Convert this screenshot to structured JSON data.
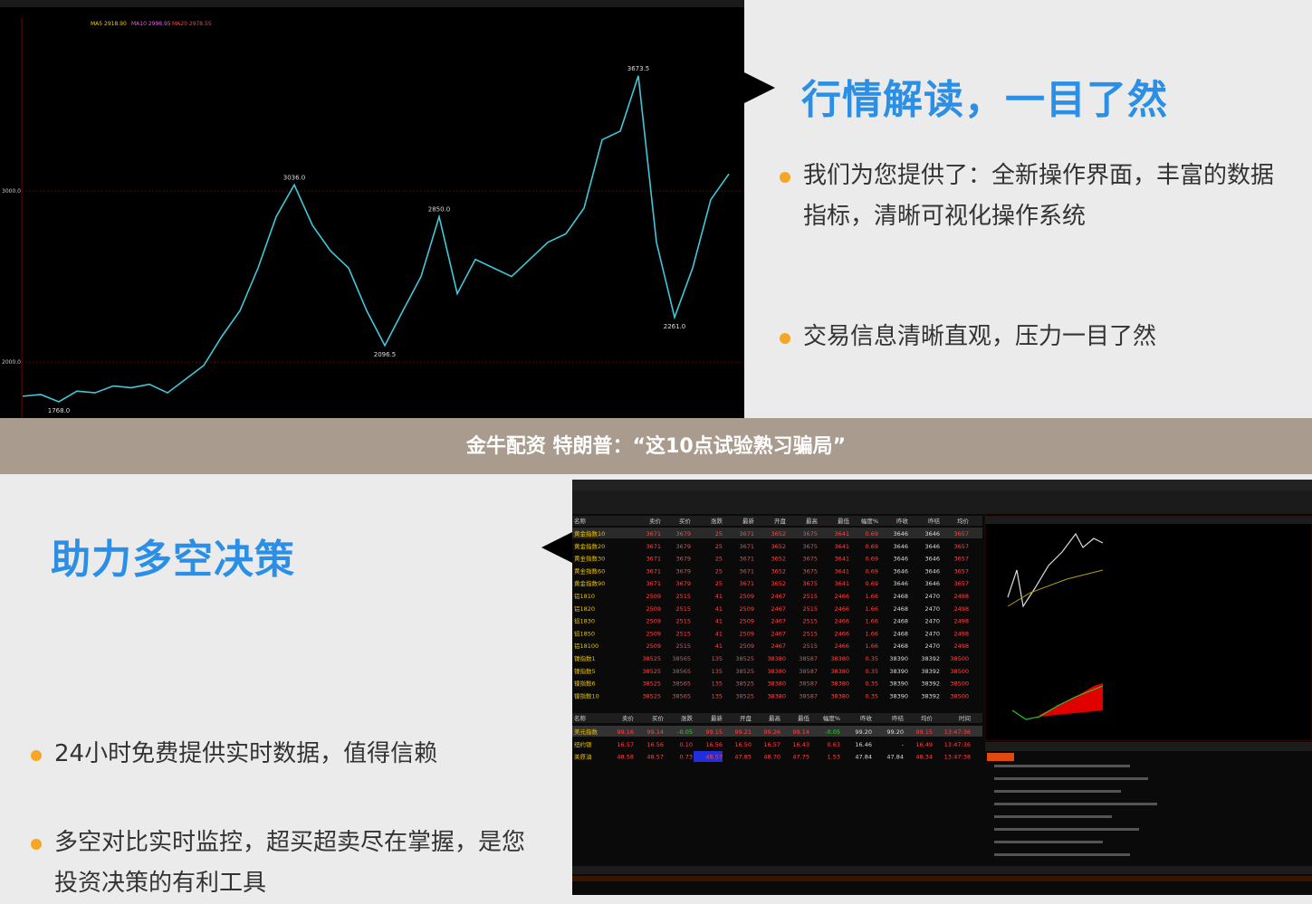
{
  "chart_data": {
    "type": "line",
    "indicators": [
      "MA5 2918.90",
      "MA10 2998.95",
      "MA20 2978.55"
    ],
    "color": "#3fc9d9",
    "values": [
      1800,
      1810,
      1768,
      1830,
      1820,
      1860,
      1850,
      1870,
      1820,
      1900,
      1980,
      2150,
      2300,
      2550,
      2850,
      3036,
      2800,
      2650,
      2550,
      2300,
      2096.5,
      2300,
      2500,
      2850,
      2400,
      2600,
      2550,
      2500,
      2600,
      2700,
      2750,
      2900,
      3300,
      3350,
      3673.5,
      2700,
      2261,
      2550,
      2950,
      3100
    ],
    "value_labels": [
      null,
      null,
      "1768.0",
      null,
      null,
      null,
      null,
      null,
      null,
      null,
      null,
      null,
      null,
      null,
      null,
      "3036.0",
      null,
      null,
      null,
      null,
      "2096.5",
      null,
      null,
      "2850.0",
      null,
      null,
      null,
      null,
      null,
      null,
      null,
      null,
      null,
      null,
      "3673.5",
      null,
      "2261.0",
      null,
      null,
      null
    ],
    "ylim": [
      1683,
      4011
    ],
    "yticks": [
      {
        "value": 2000,
        "label": "2000.0"
      },
      {
        "value": 3000,
        "label": "3000.0"
      }
    ],
    "grid": true
  },
  "top_panel": {
    "title": "行情解读，一目了然",
    "bullets": [
      "我们为您提供了：全新操作界面，丰富的数据指标，清晰可视化操作系统",
      "交易信息清晰直观，压力一目了然"
    ]
  },
  "banner": {
    "text": "金牛配资 特朗普：“这10点试验熟习骗局”"
  },
  "bottom_panel": {
    "title": "助力多空决策",
    "bullets": [
      "24小时免费提供实时数据，值得信赖",
      "多空对比实时监控，超买超卖尽在掌握，是您投资决策的有利工具"
    ]
  },
  "screenshot": {
    "columns": [
      "名称",
      "卖价",
      "买价",
      "涨跌",
      "最新",
      "开盘",
      "最高",
      "最低",
      "幅度%",
      "昨收",
      "昨结",
      "均价"
    ],
    "rows": [
      [
        "黄金指数10",
        "3671",
        "3679",
        "25",
        "3671",
        "3652",
        "3675",
        "3641",
        "0.69",
        "3646",
        "3646",
        "3657"
      ],
      [
        "黄金指数20",
        "3671",
        "3679",
        "25",
        "3671",
        "3652",
        "3675",
        "3641",
        "0.69",
        "3646",
        "3646",
        "3657"
      ],
      [
        "黄金指数30",
        "3671",
        "3679",
        "25",
        "3671",
        "3652",
        "3675",
        "3641",
        "0.69",
        "3646",
        "3646",
        "3657"
      ],
      [
        "黄金指数60",
        "3671",
        "3679",
        "25",
        "3671",
        "3652",
        "3675",
        "3641",
        "0.69",
        "3646",
        "3646",
        "3657"
      ],
      [
        "黄金指数90",
        "3671",
        "3679",
        "25",
        "3671",
        "3652",
        "3675",
        "3641",
        "0.69",
        "3646",
        "3646",
        "3657"
      ],
      [
        "铝1810",
        "2509",
        "2515",
        "41",
        "2509",
        "2467",
        "2515",
        "2466",
        "1.66",
        "2468",
        "2470",
        "2498"
      ],
      [
        "铝1820",
        "2509",
        "2515",
        "41",
        "2509",
        "2467",
        "2515",
        "2466",
        "1.66",
        "2468",
        "2470",
        "2498"
      ],
      [
        "铝1830",
        "2509",
        "2515",
        "41",
        "2509",
        "2467",
        "2515",
        "2466",
        "1.66",
        "2468",
        "2470",
        "2498"
      ],
      [
        "铝1850",
        "2509",
        "2515",
        "41",
        "2509",
        "2467",
        "2515",
        "2466",
        "1.66",
        "2468",
        "2470",
        "2498"
      ],
      [
        "铝18100",
        "2509",
        "2515",
        "41",
        "2509",
        "2467",
        "2515",
        "2466",
        "1.66",
        "2468",
        "2470",
        "2498"
      ],
      [
        "镍指数1",
        "38525",
        "38565",
        "135",
        "38525",
        "38380",
        "38587",
        "38380",
        "0.35",
        "38390",
        "38392",
        "38500"
      ],
      [
        "镍指数5",
        "38525",
        "38565",
        "135",
        "38525",
        "38380",
        "38587",
        "38380",
        "0.35",
        "38390",
        "38392",
        "38500"
      ],
      [
        "镍指数6",
        "38525",
        "38565",
        "135",
        "38525",
        "38380",
        "38587",
        "38380",
        "0.35",
        "38390",
        "38392",
        "38500"
      ],
      [
        "镍指数10",
        "38525",
        "38565",
        "135",
        "38525",
        "38380",
        "38587",
        "38380",
        "0.35",
        "38390",
        "38392",
        "38500"
      ]
    ],
    "columns2": [
      "名称",
      "卖价",
      "买价",
      "涨跌",
      "最新",
      "开盘",
      "最高",
      "最低",
      "幅度%",
      "昨收",
      "昨结",
      "均价",
      "时间"
    ],
    "rows2": [
      [
        "美元指数",
        "99.16",
        "99.14",
        "-0.05",
        "99.15",
        "99.21",
        "99.26",
        "99.14",
        "-0.05",
        "99.20",
        "99.20",
        "99.15",
        "13:47:36"
      ],
      [
        "纽约银",
        "16.57",
        "16.56",
        "0.10",
        "16.56",
        "16.50",
        "16.57",
        "16.43",
        "0.63",
        "16.46",
        "-",
        "16.49",
        "13:47:36"
      ],
      [
        "美原油",
        "48.58",
        "48.57",
        "0.73",
        "48.57",
        "47.85",
        "48.70",
        "47.75",
        "1.53",
        "47.84",
        "47.84",
        "48.34",
        "13:47:38"
      ]
    ]
  }
}
